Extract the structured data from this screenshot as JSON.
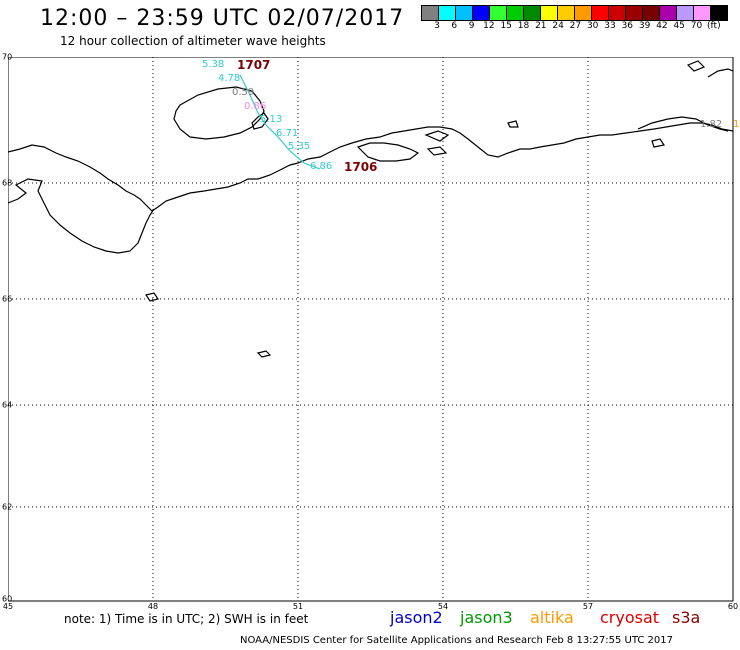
{
  "header": {
    "title": "12:00 – 23:59 UTC 02/07/2017",
    "subtitle": "12 hour collection of altimeter wave heights"
  },
  "legend": {
    "colors": [
      "#808080",
      "#00ffff",
      "#00bfff",
      "#0000ff",
      "#33ff33",
      "#00cc00",
      "#008800",
      "#ffff00",
      "#ffcc00",
      "#ff9900",
      "#ff0000",
      "#cc0000",
      "#990000",
      "#770000",
      "#aa00aa",
      "#bb99ff",
      "#ff99ff",
      "#000000"
    ],
    "ticks": [
      "3",
      "6",
      "9",
      "12",
      "15",
      "18",
      "21",
      "24",
      "27",
      "30",
      "33",
      "36",
      "39",
      "42",
      "45",
      "70",
      "(ft)"
    ]
  },
  "map": {
    "lat_labels": [
      "70",
      "68",
      "66",
      "64",
      "62",
      "60"
    ],
    "lon_labels": [
      "45",
      "48",
      "51",
      "54",
      "57",
      "60"
    ],
    "observations": [
      {
        "text": "5.38",
        "color": "#33cccc"
      },
      {
        "text": "4.78",
        "color": "#33cccc"
      },
      {
        "text": "0.59",
        "color": "#808080"
      },
      {
        "text": "0.86",
        "color": "#ee88ee"
      },
      {
        "text": "5.13",
        "color": "#33cccc"
      },
      {
        "text": "6.71",
        "color": "#33cccc"
      },
      {
        "text": "5.35",
        "color": "#33cccc"
      },
      {
        "text": "6.86",
        "color": "#33cccc"
      },
      {
        "text": "1.82",
        "color": "#808080"
      },
      {
        "text": "1",
        "color": "#ff9900"
      }
    ],
    "passes": [
      "1707",
      "1706"
    ]
  },
  "footer": {
    "note": "note: 1) Time is in UTC; 2) SWH is in feet",
    "satellites": [
      {
        "name": "jason2",
        "color": "#0000cc"
      },
      {
        "name": "jason3",
        "color": "#009900"
      },
      {
        "name": "altika",
        "color": "#ff9900"
      },
      {
        "name": "cryosat",
        "color": "#dd0000"
      },
      {
        "name": "s3a",
        "color": "#880000"
      }
    ],
    "credit": "NOAA/NESDIS Center for Satellite Applications and Research    Feb  8 13:27:55 UTC 2017"
  }
}
